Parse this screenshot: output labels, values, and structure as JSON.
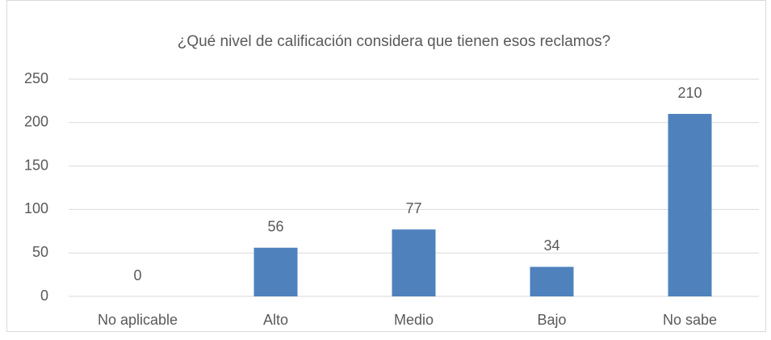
{
  "chart_data": {
    "type": "bar",
    "title": "¿Qué nivel de calificación considera que tienen esos reclamos?",
    "categories": [
      "No aplicable",
      "Alto",
      "Medio",
      "Bajo",
      "No sabe"
    ],
    "values": [
      0,
      56,
      77,
      34,
      210
    ],
    "color": "#4f81bd",
    "ylim": [
      0,
      250
    ],
    "yticks": [
      0,
      50,
      100,
      150,
      200,
      250
    ],
    "grid": true
  }
}
